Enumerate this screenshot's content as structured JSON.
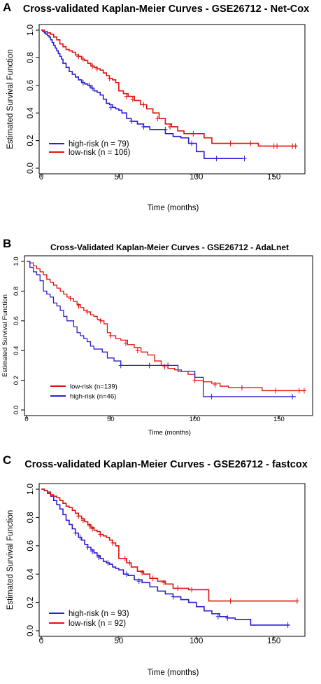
{
  "colors": {
    "blue": "#2b1fd6",
    "red": "#e3120b"
  },
  "chart_data": [
    {
      "panel": "A",
      "type": "line",
      "title": "Cross-validated Kaplan-Meier Curves - GSE26712 - Net-Cox",
      "xlabel": "Time (months)",
      "ylabel": "Estimated Survival Function",
      "xlim": [
        0,
        170
      ],
      "ylim": [
        0,
        1
      ],
      "xticks": [
        0,
        50,
        100,
        150
      ],
      "yticks": [
        0.0,
        0.2,
        0.4,
        0.6,
        0.8,
        1.0
      ],
      "ytick_labels": [
        "0.0",
        "0.2",
        "0.4",
        "0.6",
        "0.8",
        "1.0"
      ],
      "legend_position": "bottom-left",
      "series": [
        {
          "name": "high-risk (n = 79)",
          "color": "#2b1fd6",
          "x": [
            0,
            1,
            2,
            3,
            4,
            5,
            6,
            7,
            8,
            9,
            10,
            11,
            12,
            13,
            14,
            16,
            18,
            20,
            22,
            24,
            26,
            28,
            30,
            32,
            34,
            36,
            38,
            40,
            42,
            44,
            46,
            48,
            50,
            52,
            55,
            58,
            62,
            66,
            70,
            75,
            80,
            85,
            90,
            95,
            100,
            105,
            110,
            115,
            120,
            125,
            130
          ],
          "y": [
            1.0,
            0.99,
            0.98,
            0.97,
            0.96,
            0.95,
            0.93,
            0.91,
            0.89,
            0.87,
            0.85,
            0.83,
            0.81,
            0.79,
            0.76,
            0.73,
            0.7,
            0.68,
            0.66,
            0.64,
            0.62,
            0.61,
            0.6,
            0.58,
            0.56,
            0.55,
            0.53,
            0.5,
            0.47,
            0.46,
            0.44,
            0.43,
            0.42,
            0.4,
            0.36,
            0.34,
            0.32,
            0.3,
            0.28,
            0.28,
            0.25,
            0.23,
            0.22,
            0.18,
            0.12,
            0.07,
            0.07,
            0.07,
            0.07,
            0.07,
            0.07
          ],
          "censored": [
            [
              27,
              0.62
            ],
            [
              31,
              0.6
            ],
            [
              33,
              0.58
            ],
            [
              45,
              0.44
            ],
            [
              58,
              0.34
            ],
            [
              66,
              0.3
            ],
            [
              80,
              0.28
            ],
            [
              97,
              0.18
            ],
            [
              113,
              0.07
            ],
            [
              131,
              0.07
            ]
          ]
        },
        {
          "name": "low-risk (n = 106)",
          "color": "#e3120b",
          "x": [
            0,
            2,
            4,
            6,
            8,
            10,
            12,
            14,
            16,
            18,
            20,
            22,
            24,
            26,
            28,
            30,
            32,
            34,
            36,
            38,
            40,
            42,
            44,
            46,
            48,
            50,
            53,
            56,
            60,
            64,
            68,
            72,
            76,
            80,
            84,
            88,
            92,
            96,
            100,
            105,
            110,
            115,
            120,
            130,
            140,
            150,
            160,
            165
          ],
          "y": [
            1.0,
            0.99,
            0.98,
            0.97,
            0.95,
            0.93,
            0.9,
            0.88,
            0.86,
            0.85,
            0.84,
            0.82,
            0.81,
            0.79,
            0.78,
            0.76,
            0.74,
            0.73,
            0.72,
            0.71,
            0.69,
            0.67,
            0.65,
            0.64,
            0.62,
            0.56,
            0.54,
            0.52,
            0.49,
            0.46,
            0.43,
            0.4,
            0.36,
            0.32,
            0.3,
            0.27,
            0.25,
            0.25,
            0.25,
            0.22,
            0.18,
            0.18,
            0.18,
            0.18,
            0.16,
            0.16,
            0.16,
            0.16
          ],
          "censored": [
            [
              24,
              0.81
            ],
            [
              27,
              0.79
            ],
            [
              33,
              0.74
            ],
            [
              36,
              0.72
            ],
            [
              44,
              0.65
            ],
            [
              55,
              0.52
            ],
            [
              59,
              0.5
            ],
            [
              66,
              0.46
            ],
            [
              75,
              0.36
            ],
            [
              83,
              0.3
            ],
            [
              98,
              0.25
            ],
            [
              122,
              0.18
            ],
            [
              135,
              0.18
            ],
            [
              150,
              0.16
            ],
            [
              152,
              0.16
            ],
            [
              162,
              0.16
            ],
            [
              164,
              0.16
            ]
          ]
        }
      ]
    },
    {
      "panel": "B",
      "type": "line",
      "title": "Cross-Validated Kaplan-Meier Curves - GSE26712 - AdaLnet",
      "xlabel": "Time (months)",
      "ylabel": "Estimated Survival Function",
      "xlim": [
        0,
        170
      ],
      "ylim": [
        0,
        1
      ],
      "xticks": [
        0,
        50,
        100,
        150
      ],
      "yticks": [
        0.0,
        0.2,
        0.4,
        0.6,
        0.8,
        1.0
      ],
      "ytick_labels": [
        "0.0",
        "0.2",
        "0.4",
        "0.6",
        "0.8",
        "1.0"
      ],
      "legend_position": "bottom-left",
      "series": [
        {
          "name": "low-risk (n=139)",
          "color": "#e3120b",
          "x": [
            0,
            2,
            4,
            6,
            8,
            10,
            12,
            14,
            16,
            18,
            20,
            22,
            24,
            26,
            28,
            30,
            32,
            34,
            36,
            38,
            40,
            42,
            44,
            46,
            48,
            50,
            53,
            56,
            60,
            64,
            68,
            72,
            76,
            80,
            84,
            88,
            92,
            96,
            100,
            105,
            110,
            115,
            120,
            130,
            140,
            150,
            160,
            165
          ],
          "y": [
            1.0,
            0.99,
            0.97,
            0.95,
            0.93,
            0.91,
            0.88,
            0.86,
            0.84,
            0.82,
            0.8,
            0.78,
            0.76,
            0.75,
            0.73,
            0.71,
            0.69,
            0.67,
            0.66,
            0.64,
            0.63,
            0.61,
            0.6,
            0.58,
            0.52,
            0.5,
            0.48,
            0.47,
            0.44,
            0.42,
            0.39,
            0.37,
            0.33,
            0.3,
            0.28,
            0.27,
            0.26,
            0.24,
            0.2,
            0.19,
            0.18,
            0.16,
            0.15,
            0.15,
            0.13,
            0.13,
            0.13,
            0.13
          ],
          "censored": [
            [
              26,
              0.75
            ],
            [
              31,
              0.7
            ],
            [
              36,
              0.66
            ],
            [
              44,
              0.6
            ],
            [
              50,
              0.5
            ],
            [
              59,
              0.45
            ],
            [
              66,
              0.4
            ],
            [
              82,
              0.29
            ],
            [
              100,
              0.2
            ],
            [
              112,
              0.17
            ],
            [
              128,
              0.15
            ],
            [
              148,
              0.13
            ],
            [
              162,
              0.13
            ],
            [
              165,
              0.13
            ]
          ]
        },
        {
          "name": "high-risk (n=46)",
          "color": "#2b1fd6",
          "x": [
            0,
            2,
            4,
            6,
            8,
            10,
            12,
            14,
            16,
            18,
            20,
            22,
            24,
            26,
            28,
            30,
            32,
            34,
            36,
            38,
            40,
            45,
            48,
            52,
            56,
            60,
            70,
            80,
            90,
            100,
            105,
            110,
            120,
            130,
            140,
            150,
            160
          ],
          "y": [
            1.0,
            0.96,
            0.93,
            0.91,
            0.87,
            0.8,
            0.78,
            0.76,
            0.72,
            0.7,
            0.67,
            0.63,
            0.6,
            0.6,
            0.56,
            0.52,
            0.5,
            0.48,
            0.46,
            0.43,
            0.41,
            0.39,
            0.35,
            0.33,
            0.3,
            0.3,
            0.3,
            0.3,
            0.26,
            0.22,
            0.09,
            0.09,
            0.09,
            0.09,
            0.09,
            0.09,
            0.09
          ],
          "censored": [
            [
              56,
              0.3
            ],
            [
              73,
              0.3
            ],
            [
              84,
              0.3
            ],
            [
              110,
              0.09
            ],
            [
              158,
              0.09
            ]
          ]
        }
      ]
    },
    {
      "panel": "C",
      "type": "line",
      "title": "Cross-validated Kaplan-Meier Curves - GSE26712 - fastcox",
      "xlabel": "Time (months)",
      "ylabel": "Estimated Survival Function",
      "xlim": [
        0,
        170
      ],
      "ylim": [
        0,
        1
      ],
      "xticks": [
        0,
        50,
        100,
        150
      ],
      "yticks": [
        0.0,
        0.2,
        0.4,
        0.6,
        0.8,
        1.0
      ],
      "ytick_labels": [
        "0.0",
        "0.2",
        "0.4",
        "0.6",
        "0.8",
        "1.0"
      ],
      "legend_position": "bottom-left",
      "series": [
        {
          "name": "high-risk (n = 93)",
          "color": "#2b1fd6",
          "x": [
            0,
            2,
            4,
            6,
            8,
            10,
            12,
            14,
            16,
            18,
            20,
            22,
            24,
            26,
            28,
            30,
            32,
            34,
            36,
            38,
            40,
            42,
            44,
            46,
            48,
            50,
            53,
            56,
            60,
            65,
            70,
            75,
            80,
            85,
            90,
            95,
            100,
            105,
            110,
            115,
            120,
            125,
            130,
            135,
            140,
            150,
            160
          ],
          "y": [
            1.0,
            0.99,
            0.97,
            0.95,
            0.92,
            0.89,
            0.86,
            0.82,
            0.78,
            0.75,
            0.72,
            0.69,
            0.66,
            0.64,
            0.61,
            0.59,
            0.57,
            0.55,
            0.53,
            0.51,
            0.49,
            0.48,
            0.47,
            0.45,
            0.44,
            0.43,
            0.4,
            0.39,
            0.36,
            0.34,
            0.31,
            0.28,
            0.26,
            0.24,
            0.22,
            0.2,
            0.17,
            0.14,
            0.12,
            0.1,
            0.09,
            0.08,
            0.08,
            0.04,
            0.04,
            0.04,
            0.04
          ],
          "censored": [
            [
              22,
              0.69
            ],
            [
              25,
              0.66
            ],
            [
              30,
              0.59
            ],
            [
              33,
              0.56
            ],
            [
              37,
              0.52
            ],
            [
              43,
              0.48
            ],
            [
              55,
              0.4
            ],
            [
              63,
              0.35
            ],
            [
              85,
              0.24
            ],
            [
              114,
              0.1
            ],
            [
              120,
              0.09
            ],
            [
              159,
              0.04
            ]
          ]
        },
        {
          "name": "low-risk (n = 92)",
          "color": "#e3120b",
          "x": [
            0,
            2,
            4,
            6,
            8,
            10,
            12,
            14,
            16,
            18,
            20,
            22,
            24,
            26,
            28,
            30,
            32,
            34,
            36,
            38,
            40,
            42,
            44,
            46,
            48,
            50,
            52,
            55,
            58,
            62,
            66,
            70,
            75,
            80,
            85,
            90,
            95,
            100,
            105,
            108,
            110,
            120,
            130,
            140,
            150,
            160,
            165
          ],
          "y": [
            1.0,
            0.99,
            0.98,
            0.96,
            0.95,
            0.94,
            0.92,
            0.9,
            0.88,
            0.87,
            0.85,
            0.83,
            0.81,
            0.79,
            0.77,
            0.75,
            0.73,
            0.71,
            0.7,
            0.68,
            0.67,
            0.66,
            0.64,
            0.62,
            0.6,
            0.51,
            0.51,
            0.48,
            0.45,
            0.42,
            0.4,
            0.37,
            0.35,
            0.33,
            0.3,
            0.3,
            0.29,
            0.29,
            0.29,
            0.21,
            0.21,
            0.21,
            0.21,
            0.21,
            0.21,
            0.21,
            0.21
          ],
          "censored": [
            [
              24,
              0.81
            ],
            [
              27,
              0.78
            ],
            [
              31,
              0.74
            ],
            [
              33,
              0.72
            ],
            [
              38,
              0.68
            ],
            [
              46,
              0.62
            ],
            [
              54,
              0.51
            ],
            [
              57,
              0.48
            ],
            [
              65,
              0.41
            ],
            [
              72,
              0.37
            ],
            [
              79,
              0.34
            ],
            [
              88,
              0.3
            ],
            [
              97,
              0.29
            ],
            [
              122,
              0.21
            ],
            [
              165,
              0.21
            ]
          ]
        }
      ]
    }
  ]
}
